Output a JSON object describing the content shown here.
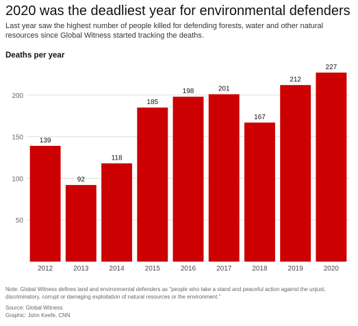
{
  "chart_data": {
    "type": "bar",
    "title": "2020 was the deadliest year for environmental defenders",
    "subtitle": "Last year saw the highest number of people killed for defending forests, water and other natural resources since Global Witness started tracking the deaths.",
    "ylabel": "Deaths per year",
    "xlabel": "",
    "categories": [
      "2012",
      "2013",
      "2014",
      "2015",
      "2016",
      "2017",
      "2018",
      "2019",
      "2020"
    ],
    "values": [
      139,
      92,
      118,
      185,
      198,
      201,
      167,
      212,
      227
    ],
    "data_labels": [
      "139",
      "92",
      "118",
      "185",
      "198",
      "201",
      "167",
      "212",
      "227"
    ],
    "yticks": [
      50,
      100,
      150,
      200
    ],
    "ytick_labels": [
      "50",
      "100",
      "150",
      "200"
    ],
    "ylim": [
      0,
      235
    ],
    "grid": true,
    "bar_color": "#cc0000",
    "note": "Note: Global Witness defines land and environmental defenders as \"people who take a stand and peaceful action against the unjust, discriminatory, corrupt or damaging exploitation of natural resources or the environment.\"",
    "source": "Source: Global Witness",
    "credit": "Graphic: John Keefe, CNN"
  }
}
